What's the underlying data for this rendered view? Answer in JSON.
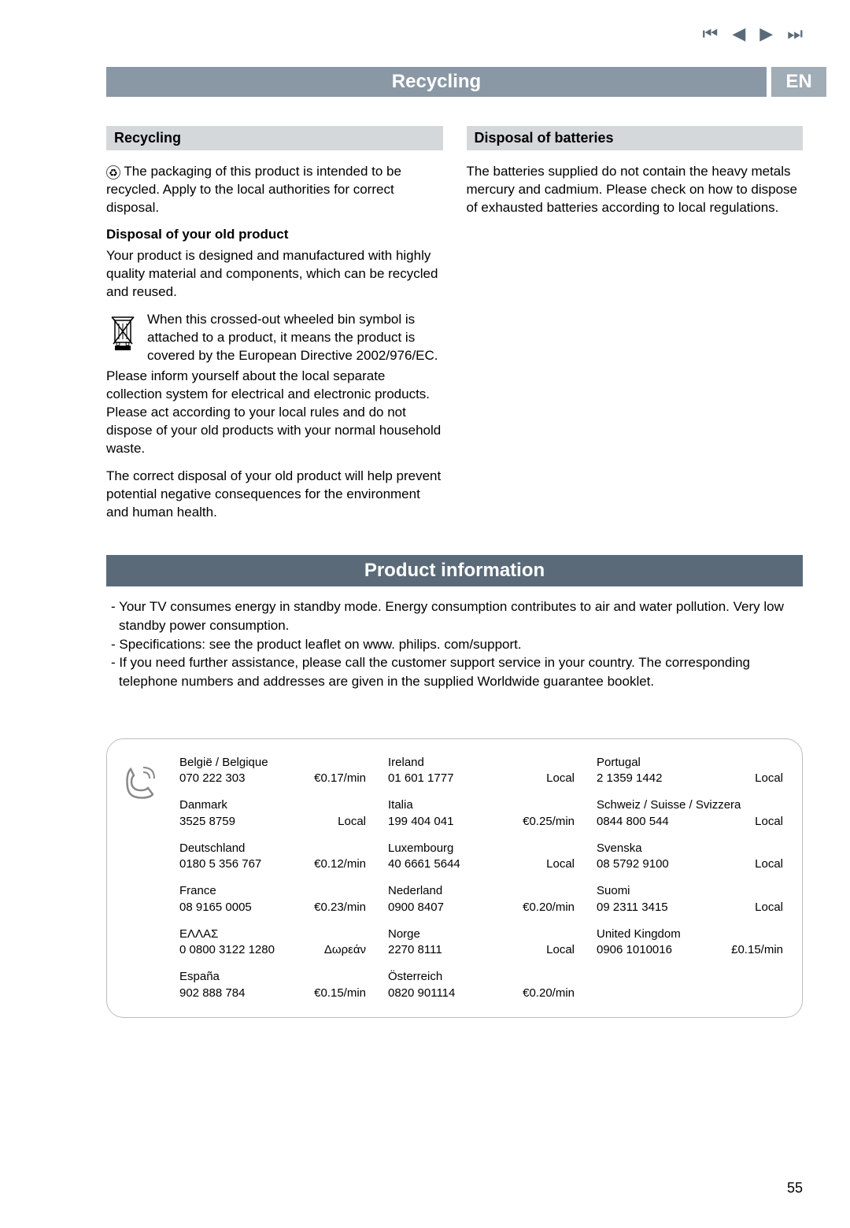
{
  "nav": {
    "first": "⏮",
    "prev": "◀",
    "next": "▶",
    "last": "⏭"
  },
  "titlebar": {
    "title": "Recycling",
    "lang": "EN"
  },
  "left": {
    "header": "Recycling",
    "intro": "The packaging of this product is intended to be recycled. Apply to the local authorities for correct disposal.",
    "disposal_heading": "Disposal of your old product",
    "p1": "Your product is designed and manufactured with highly quality material and components, which can be recycled and reused.",
    "p2": "When this crossed-out wheeled bin symbol is attached to a product, it means the product is covered by the European Directive 2002/976/EC.",
    "p3": "Please inform yourself about the local separate collection system for electrical and electronic products. Please act according to your local rules and do not dispose of your old products with your normal household waste.",
    "p4": "The correct disposal of your old product will help prevent potential negative consequences for the environment and human health."
  },
  "right": {
    "header": "Disposal of batteries",
    "p1": "The batteries supplied do not contain the heavy metals mercury and cadmium. Please check on how to dispose of exhausted batteries according to local regulations."
  },
  "info": {
    "header": "Product information",
    "b1": "- Your TV consumes energy in standby mode. Energy consumption contributes to air and water pollution. Very low standby power consumption.",
    "b2": "- Specifications: see the product leaflet on www. philips. com/support.",
    "b3": "- If you need further assistance, please call the customer support service in your country. The corresponding telephone numbers and addresses are given in the supplied Worldwide guarantee booklet."
  },
  "contacts": [
    {
      "country": "België / Belgique",
      "phone": "070 222 303",
      "rate": "€0.17/min"
    },
    {
      "country": "Ireland",
      "phone": "01 601 1777",
      "rate": "Local"
    },
    {
      "country": "Portugal",
      "phone": "2 1359 1442",
      "rate": "Local"
    },
    {
      "country": "Danmark",
      "phone": "3525 8759",
      "rate": "Local"
    },
    {
      "country": "Italia",
      "phone": "199 404 041",
      "rate": "€0.25/min"
    },
    {
      "country": "Schweiz / Suisse / Svizzera",
      "phone": "0844 800 544",
      "rate": "Local"
    },
    {
      "country": "Deutschland",
      "phone": "0180 5 356 767",
      "rate": "€0.12/min"
    },
    {
      "country": "Luxembourg",
      "phone": "40 6661 5644",
      "rate": "Local"
    },
    {
      "country": "Svenska",
      "phone": "08 5792 9100",
      "rate": "Local"
    },
    {
      "country": "France",
      "phone": "08 9165 0005",
      "rate": "€0.23/min"
    },
    {
      "country": "Nederland",
      "phone": "0900 8407",
      "rate": "€0.20/min"
    },
    {
      "country": "Suomi",
      "phone": "09 2311 3415",
      "rate": "Local"
    },
    {
      "country": "EΛΛAΣ",
      "phone": "0 0800 3122 1280",
      "rate": "Δωρεάν"
    },
    {
      "country": "Norge",
      "phone": "2270 8111",
      "rate": "Local"
    },
    {
      "country": "United Kingdom",
      "phone": "0906 1010016",
      "rate": "£0.15/min"
    },
    {
      "country": "España",
      "phone": "902 888 784",
      "rate": "€0.15/min"
    },
    {
      "country": "Österreich",
      "phone": "0820 901114",
      "rate": "€0.20/min"
    }
  ],
  "page_number": "55",
  "colors": {
    "title_bg": "#8a98a5",
    "lang_bg": "#a0acb6",
    "section_bg": "#d5d8db",
    "info_bg": "#5a6a78",
    "nav_icon": "#5a6a78"
  }
}
